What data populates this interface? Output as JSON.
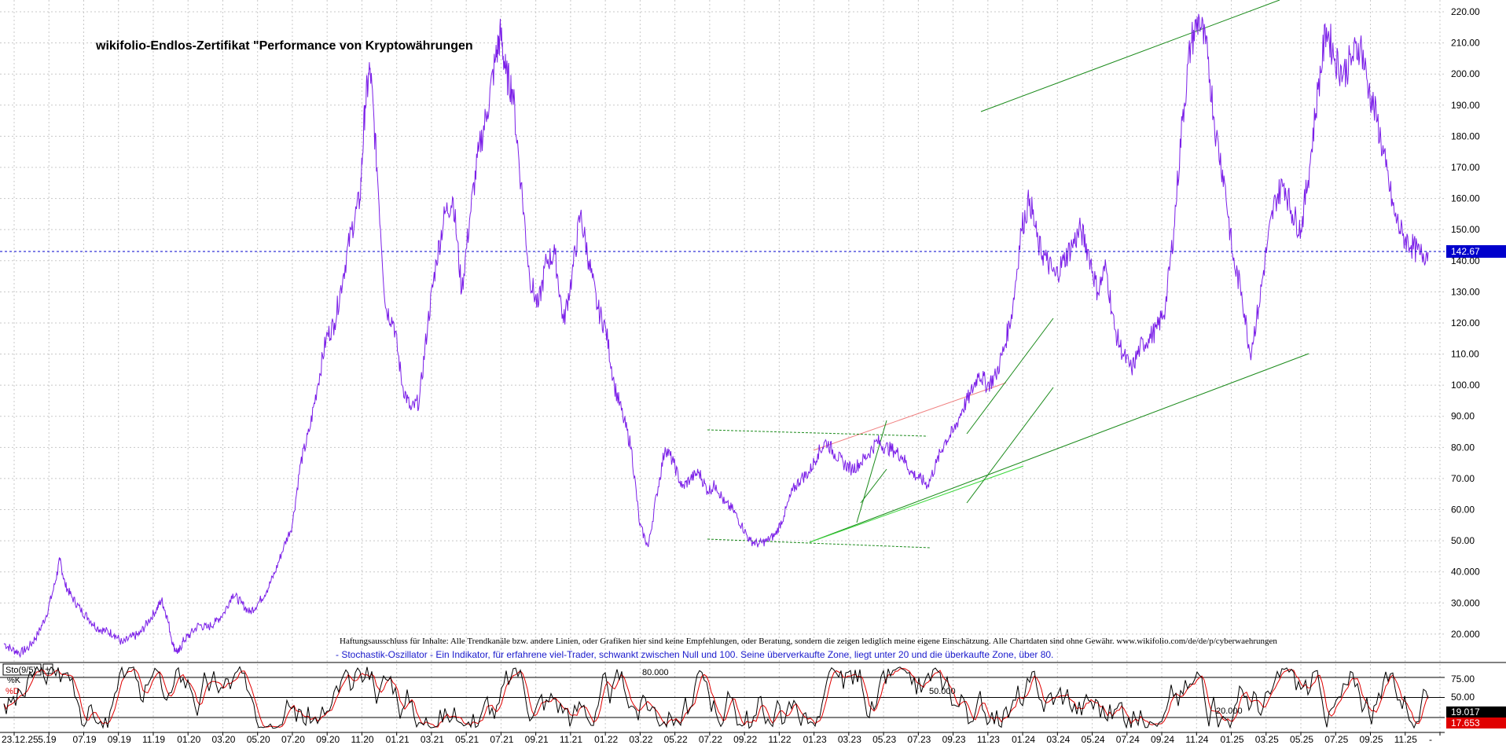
{
  "chart_data": [
    {
      "type": "line",
      "title": "wikifolio-Endlos-Zertifikat \"Performance von Kryptowährungen",
      "ylim": [
        10,
        222
      ],
      "y_ticks": [
        "20.000",
        "30.000",
        "40.000",
        "50.00",
        "60.00",
        "70.00",
        "80.00",
        "90.00",
        "100.00",
        "110.00",
        "120.00",
        "130.00",
        "140.00",
        "150.00",
        "160.00",
        "170.00",
        "180.00",
        "190.00",
        "200.00",
        "210.00",
        "220.00"
      ],
      "x_ticks": [
        "23.12.25",
        "5.19",
        "07.19",
        "09.19",
        "11.19",
        "01.20",
        "03.20",
        "05.20",
        "07.20",
        "09.20",
        "11.20",
        "01.21",
        "03.21",
        "05.21",
        "07.21",
        "09.21",
        "11.21",
        "01.22",
        "03.22",
        "05.22",
        "07.22",
        "09.22",
        "11.22",
        "01.23",
        "03.23",
        "05.23",
        "07.23",
        "09.23",
        "11.23",
        "01.24",
        "03.24",
        "05.24",
        "07.24",
        "09.24",
        "11.24",
        "01.25",
        "03.25",
        "05.25",
        "07.25",
        "09.25",
        "11.25",
        "-"
      ],
      "last_value": "142.67",
      "series": [
        {
          "name": "",
          "color": "#7b1fe8",
          "points": [
            [
              0,
              17
            ],
            [
              0.5,
              15
            ],
            [
              1,
              14
            ],
            [
              1.5,
              16
            ],
            [
              2,
              20
            ],
            [
              2.5,
              26
            ],
            [
              3,
              36
            ],
            [
              3.3,
              44
            ],
            [
              3.6,
              36
            ],
            [
              4,
              32
            ],
            [
              4.5,
              28
            ],
            [
              5,
              25
            ],
            [
              5.5,
              22
            ],
            [
              6,
              21
            ],
            [
              6.5,
              20
            ],
            [
              7,
              17
            ],
            [
              7.5,
              19
            ],
            [
              8,
              20
            ],
            [
              8.5,
              24
            ],
            [
              9,
              28
            ],
            [
              9.3,
              31
            ],
            [
              9.6,
              26
            ],
            [
              10,
              16
            ],
            [
              10.3,
              14
            ],
            [
              10.6,
              18
            ],
            [
              11,
              20
            ],
            [
              11.5,
              23
            ],
            [
              12,
              22
            ],
            [
              12.5,
              24
            ],
            [
              13,
              27
            ],
            [
              13.5,
              33
            ],
            [
              14,
              30
            ],
            [
              14.5,
              27
            ],
            [
              15,
              30
            ],
            [
              15.5,
              34
            ],
            [
              16,
              40
            ],
            [
              16.5,
              48
            ],
            [
              17,
              55
            ],
            [
              17.5,
              75
            ],
            [
              18,
              85
            ],
            [
              18.5,
              100
            ],
            [
              19,
              115
            ],
            [
              19.5,
              120
            ],
            [
              20,
              135
            ],
            [
              20.5,
              150
            ],
            [
              21,
              160
            ],
            [
              21.3,
              190
            ],
            [
              21.6,
              202
            ],
            [
              22,
              170
            ],
            [
              22.5,
              125
            ],
            [
              23,
              120
            ],
            [
              23.5,
              100
            ],
            [
              24,
              92
            ],
            [
              24.5,
              95
            ],
            [
              25,
              120
            ],
            [
              25.5,
              140
            ],
            [
              26,
              155
            ],
            [
              26.5,
              160
            ],
            [
              27,
              130
            ],
            [
              27.5,
              155
            ],
            [
              28,
              175
            ],
            [
              28.5,
              188
            ],
            [
              29,
              205
            ],
            [
              29.3,
              213
            ],
            [
              29.6,
              200
            ],
            [
              30,
              195
            ],
            [
              30.5,
              165
            ],
            [
              31,
              135
            ],
            [
              31.5,
              125
            ],
            [
              32,
              140
            ],
            [
              32.5,
              142
            ],
            [
              33,
              120
            ],
            [
              33.5,
              135
            ],
            [
              34,
              155
            ],
            [
              34.5,
              140
            ],
            [
              35,
              125
            ],
            [
              35.5,
              118
            ],
            [
              36,
              100
            ],
            [
              36.5,
              90
            ],
            [
              37,
              80
            ],
            [
              37.5,
              55
            ],
            [
              38,
              48
            ],
            [
              38.5,
              65
            ],
            [
              39,
              80
            ],
            [
              39.5,
              75
            ],
            [
              40,
              67
            ],
            [
              40.5,
              70
            ],
            [
              41,
              72
            ],
            [
              41.5,
              66
            ],
            [
              42,
              68
            ],
            [
              42.5,
              62
            ],
            [
              43,
              60
            ],
            [
              43.5,
              55
            ],
            [
              44,
              50
            ],
            [
              44.5,
              49
            ],
            [
              45,
              50
            ],
            [
              45.5,
              52
            ],
            [
              46,
              58
            ],
            [
              46.5,
              66
            ],
            [
              47,
              70
            ],
            [
              47.5,
              72
            ],
            [
              48,
              78
            ],
            [
              48.5,
              82
            ],
            [
              49,
              78
            ],
            [
              49.5,
              75
            ],
            [
              50,
              73
            ],
            [
              50.5,
              75
            ],
            [
              51,
              78
            ],
            [
              51.5,
              82
            ],
            [
              52,
              80
            ],
            [
              52.5,
              79
            ],
            [
              53,
              77
            ],
            [
              53.5,
              72
            ],
            [
              54,
              70
            ],
            [
              54.5,
              68
            ],
            [
              55,
              75
            ],
            [
              55.5,
              82
            ],
            [
              56,
              85
            ],
            [
              56.5,
              92
            ],
            [
              57,
              97
            ],
            [
              57.5,
              104
            ],
            [
              58,
              100
            ],
            [
              58.5,
              103
            ],
            [
              59,
              112
            ],
            [
              59.5,
              125
            ],
            [
              60,
              150
            ],
            [
              60.5,
              160
            ],
            [
              61,
              145
            ],
            [
              61.5,
              140
            ],
            [
              62,
              135
            ],
            [
              62.5,
              140
            ],
            [
              63,
              145
            ],
            [
              63.5,
              150
            ],
            [
              64,
              142
            ],
            [
              64.5,
              130
            ],
            [
              65,
              138
            ],
            [
              65.5,
              118
            ],
            [
              66,
              110
            ],
            [
              66.5,
              105
            ],
            [
              67,
              112
            ],
            [
              67.5,
              115
            ],
            [
              68,
              118
            ],
            [
              68.5,
              125
            ],
            [
              69,
              150
            ],
            [
              69.5,
              185
            ],
            [
              70,
              210
            ],
            [
              70.5,
              218
            ],
            [
              71,
              205
            ],
            [
              71.5,
              180
            ],
            [
              72,
              165
            ],
            [
              72.5,
              140
            ],
            [
              73,
              130
            ],
            [
              73.5,
              110
            ],
            [
              74,
              125
            ],
            [
              74.5,
              145
            ],
            [
              75,
              160
            ],
            [
              75.5,
              165
            ],
            [
              76,
              155
            ],
            [
              76.5,
              150
            ],
            [
              77,
              170
            ],
            [
              77.5,
              195
            ],
            [
              78,
              215
            ],
            [
              78.5,
              205
            ],
            [
              79,
              200
            ],
            [
              79.5,
              205
            ],
            [
              80,
              210
            ],
            [
              80.5,
              195
            ],
            [
              81,
              185
            ],
            [
              81.5,
              170
            ],
            [
              82,
              155
            ],
            [
              82.5,
              148
            ],
            [
              83,
              145
            ],
            [
              83.5,
              142
            ],
            [
              84,
              142.67
            ]
          ]
        }
      ]
    },
    {
      "type": "line",
      "title": "Sto(9/5)",
      "ylim": [
        0,
        100
      ],
      "y_ticks": [
        "75.00",
        "50.00"
      ],
      "levels": [
        "80.000",
        "50.000",
        "20.000"
      ],
      "series": [
        {
          "name": "%K",
          "color": "#000000",
          "last_value": "19.017"
        },
        {
          "name": "%D",
          "color": "#e00000",
          "last_value": "17.653"
        }
      ]
    }
  ],
  "disclaimer": "Haftungsausschluss für Inhalte: Alle Trendkanäle bzw. andere Linien, oder Grafiken hier sind keine Empfehlungen, oder Beratung, sondern die zeigen lediglich meine eigene Einschätzung. Alle Chartdaten sind ohne Gewähr.  www.wikifolio.com/de/de/p/cyberwaehrungen",
  "osc_note": "- Stochastik-Oszillator - Ein Indikator, für erfahrene viel-Trader, schwankt zwischen Null und 100. Seine überverkaufte Zone, liegt unter 20 und die überkaufte Zone, über 80.",
  "colors": {
    "price_line": "#7b1fe8",
    "trend_dark": "#1a8a1a",
    "trend_light": "#39d839",
    "trend_red": "#f08080",
    "current_line": "#0000cc",
    "grid": "#c8c8c8"
  }
}
